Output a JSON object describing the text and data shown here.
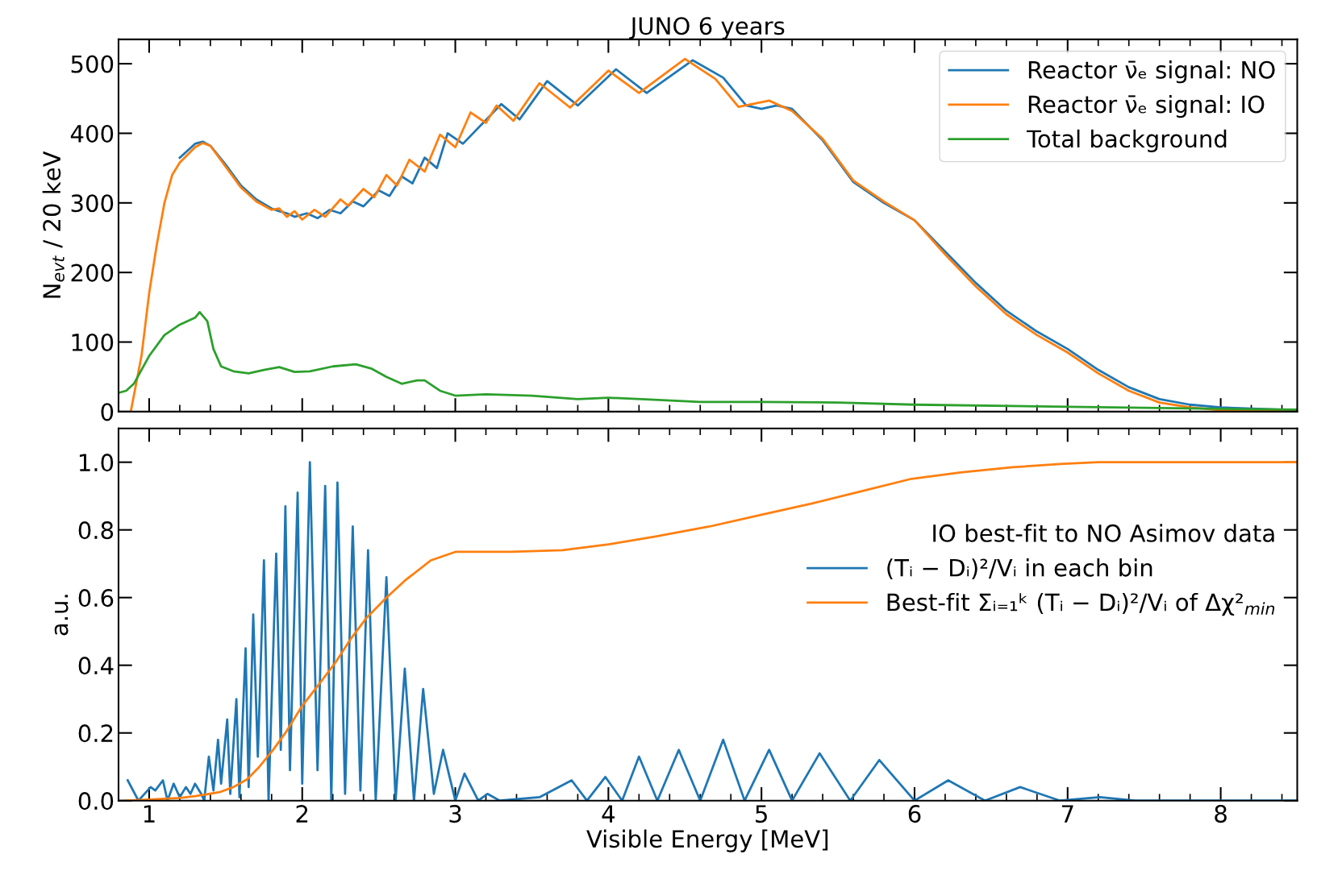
{
  "chart_data": [
    {
      "type": "line",
      "title": "JUNO 6 years",
      "ylabel": "N$_{evt}$ / 20 keV",
      "xlim": [
        0.8,
        8.5
      ],
      "xticks": [
        1,
        2,
        3,
        4,
        5,
        6,
        7,
        8,
        {
          "value": 1.2,
          "label": null
        },
        {
          "value": 1.4,
          "label": null
        },
        {
          "value": 1.6,
          "label": null
        },
        {
          "value": 1.8,
          "label": null
        },
        {
          "value": 2.2,
          "label": null
        },
        {
          "value": 2.4,
          "label": null
        },
        {
          "value": 2.6,
          "label": null
        },
        {
          "value": 2.8,
          "label": null
        },
        {
          "value": 3.2,
          "label": null
        },
        {
          "value": 3.4,
          "label": null
        },
        {
          "value": 3.6,
          "label": null
        },
        {
          "value": 3.8,
          "label": null
        },
        {
          "value": 4.2,
          "label": null
        },
        {
          "value": 4.4,
          "label": null
        },
        {
          "value": 4.6,
          "label": null
        },
        {
          "value": 4.8,
          "label": null
        },
        {
          "value": 5.2,
          "label": null
        },
        {
          "value": 5.4,
          "label": null
        },
        {
          "value": 5.6,
          "label": null
        },
        {
          "value": 5.8,
          "label": null
        },
        {
          "value": 6.2,
          "label": null
        },
        {
          "value": 6.4,
          "label": null
        },
        {
          "value": 6.6,
          "label": null
        },
        {
          "value": 6.8,
          "label": null
        },
        {
          "value": 7.2,
          "label": null
        },
        {
          "value": 7.4,
          "label": null
        },
        {
          "value": 7.6,
          "label": null
        },
        {
          "value": 7.8,
          "label": null
        },
        {
          "value": 8.2,
          "label": null
        },
        {
          "value": 8.4,
          "label": null
        }
      ],
      "ylim": [
        0,
        535
      ],
      "yticks": [
        0,
        100,
        200,
        300,
        400,
        500
      ],
      "tick_labels": "y",
      "legend": "top right",
      "grid": false,
      "series": [
        {
          "name": "Reactor ν̄ₑ signal: NO",
          "color": "#1f77b4",
          "x": [
            1.2,
            1.3,
            1.35,
            1.4,
            1.5,
            1.6,
            1.7,
            1.8,
            1.85,
            1.9,
            1.95,
            2.03,
            2.1,
            2.18,
            2.25,
            2.33,
            2.4,
            2.5,
            2.57,
            2.65,
            2.72,
            2.8,
            2.88,
            2.95,
            3.05,
            3.3,
            3.42,
            3.6,
            3.8,
            4.05,
            4.25,
            4.55,
            4.75,
            4.9,
            5.0,
            5.1,
            5.2,
            5.4,
            5.6,
            5.8,
            6.0,
            6.2,
            6.4,
            6.6,
            6.8,
            7.0,
            7.2,
            7.4,
            7.6,
            7.8,
            8.0,
            8.5
          ],
          "values": [
            365,
            385,
            388,
            382,
            355,
            325,
            305,
            292,
            288,
            285,
            280,
            285,
            278,
            290,
            285,
            302,
            295,
            318,
            310,
            338,
            328,
            365,
            350,
            400,
            385,
            442,
            420,
            475,
            440,
            492,
            458,
            505,
            480,
            440,
            435,
            440,
            435,
            390,
            330,
            300,
            275,
            230,
            185,
            145,
            115,
            90,
            60,
            35,
            18,
            10,
            6,
            2
          ]
        },
        {
          "name": "Reactor ν̄ₑ signal: IO",
          "color": "#ff7f0e",
          "x": [
            0.88,
            0.95,
            1.0,
            1.05,
            1.1,
            1.15,
            1.2,
            1.3,
            1.35,
            1.4,
            1.5,
            1.6,
            1.7,
            1.8,
            1.85,
            1.9,
            1.95,
            2.0,
            2.08,
            2.15,
            2.25,
            2.3,
            2.4,
            2.47,
            2.55,
            2.62,
            2.7,
            2.8,
            2.9,
            3.0,
            3.1,
            3.2,
            3.27,
            3.38,
            3.55,
            3.75,
            4.0,
            4.2,
            4.5,
            4.7,
            4.85,
            5.05,
            5.2,
            5.4,
            5.6,
            5.8,
            6.0,
            6.2,
            6.4,
            6.6,
            6.8,
            7.0,
            7.2,
            7.4,
            7.6,
            7.8,
            8.0,
            8.5
          ],
          "values": [
            0,
            80,
            170,
            240,
            300,
            340,
            358,
            380,
            386,
            382,
            352,
            322,
            302,
            290,
            292,
            280,
            288,
            276,
            290,
            280,
            305,
            296,
            320,
            308,
            340,
            325,
            362,
            345,
            398,
            380,
            430,
            415,
            440,
            418,
            472,
            437,
            490,
            458,
            507,
            478,
            438,
            447,
            432,
            392,
            332,
            302,
            275,
            226,
            180,
            140,
            110,
            85,
            55,
            30,
            13,
            6,
            2,
            0
          ]
        },
        {
          "name": "Total background",
          "color": "#2ca02c",
          "x": [
            0.8,
            0.85,
            0.9,
            1.0,
            1.1,
            1.2,
            1.3,
            1.33,
            1.38,
            1.42,
            1.47,
            1.55,
            1.65,
            1.75,
            1.85,
            1.95,
            2.05,
            2.2,
            2.35,
            2.45,
            2.55,
            2.65,
            2.75,
            2.8,
            2.9,
            3.0,
            3.2,
            3.5,
            3.8,
            4.0,
            4.3,
            4.6,
            5.0,
            5.5,
            6.0,
            7.0,
            8.0,
            8.5
          ],
          "values": [
            27,
            30,
            40,
            80,
            110,
            125,
            135,
            143,
            130,
            90,
            65,
            58,
            55,
            60,
            64,
            57,
            58,
            65,
            68,
            62,
            50,
            40,
            45,
            45,
            30,
            23,
            25,
            23,
            18,
            20,
            17,
            14,
            14,
            13,
            10,
            7,
            4,
            3
          ]
        }
      ]
    },
    {
      "type": "line",
      "xlabel": "Visible Energy [MeV]",
      "ylabel": "a.u.",
      "xlim": [
        0.8,
        8.5
      ],
      "xticks": [
        1,
        2,
        3,
        4,
        5,
        6,
        7,
        8,
        {
          "value": 1.2,
          "label": null
        },
        {
          "value": 1.4,
          "label": null
        },
        {
          "value": 1.6,
          "label": null
        },
        {
          "value": 1.8,
          "label": null
        },
        {
          "value": 2.2,
          "label": null
        },
        {
          "value": 2.4,
          "label": null
        },
        {
          "value": 2.6,
          "label": null
        },
        {
          "value": 2.8,
          "label": null
        },
        {
          "value": 3.2,
          "label": null
        },
        {
          "value": 3.4,
          "label": null
        },
        {
          "value": 3.6,
          "label": null
        },
        {
          "value": 3.8,
          "label": null
        },
        {
          "value": 4.2,
          "label": null
        },
        {
          "value": 4.4,
          "label": null
        },
        {
          "value": 4.6,
          "label": null
        },
        {
          "value": 4.8,
          "label": null
        },
        {
          "value": 5.2,
          "label": null
        },
        {
          "value": 5.4,
          "label": null
        },
        {
          "value": 5.6,
          "label": null
        },
        {
          "value": 5.8,
          "label": null
        },
        {
          "value": 6.2,
          "label": null
        },
        {
          "value": 6.4,
          "label": null
        },
        {
          "value": 6.6,
          "label": null
        },
        {
          "value": 6.8,
          "label": null
        },
        {
          "value": 7.2,
          "label": null
        },
        {
          "value": 7.4,
          "label": null
        },
        {
          "value": 7.6,
          "label": null
        },
        {
          "value": 7.8,
          "label": null
        },
        {
          "value": 8.2,
          "label": null
        },
        {
          "value": 8.4,
          "label": null
        }
      ],
      "ylim": [
        0,
        1.1
      ],
      "yticks": [
        {
          "value": 0,
          "label": "0.0"
        },
        {
          "value": 0.2,
          "label": "0.2"
        },
        {
          "value": 0.4,
          "label": "0.4"
        },
        {
          "value": 0.6,
          "label": "0.6"
        },
        {
          "value": 0.8,
          "label": "0.8"
        },
        {
          "value": 1.0,
          "label": "1.0"
        }
      ],
      "legend": "right",
      "legend_title": "IO best-fit to NO Asimov data",
      "grid": false,
      "series": [
        {
          "name": "(Tᵢ − Dᵢ)²/Vᵢ in each bin",
          "color": "#1f77b4",
          "x": [
            0.86,
            0.93,
            1.01,
            1.04,
            1.09,
            1.12,
            1.16,
            1.2,
            1.24,
            1.27,
            1.3,
            1.34,
            1.36,
            1.39,
            1.42,
            1.45,
            1.47,
            1.51,
            1.53,
            1.57,
            1.59,
            1.63,
            1.65,
            1.68,
            1.71,
            1.75,
            1.78,
            1.83,
            1.86,
            1.89,
            1.92,
            1.97,
            2.0,
            2.05,
            2.1,
            2.15,
            2.19,
            2.23,
            2.28,
            2.33,
            2.38,
            2.43,
            2.48,
            2.55,
            2.61,
            2.67,
            2.73,
            2.79,
            2.86,
            2.92,
            3.0,
            3.06,
            3.15,
            3.21,
            3.29,
            3.55,
            3.76,
            3.86,
            3.98,
            4.09,
            4.2,
            4.32,
            4.46,
            4.6,
            4.75,
            4.89,
            5.05,
            5.2,
            5.38,
            5.58,
            5.77,
            6.0,
            6.22,
            6.46,
            6.69,
            6.95,
            7.21,
            7.44,
            8.5
          ],
          "values": [
            0.06,
            0.0,
            0.04,
            0.03,
            0.06,
            0.0,
            0.05,
            0.01,
            0.04,
            0.02,
            0.05,
            0.02,
            0.0,
            0.13,
            0.03,
            0.18,
            0.05,
            0.24,
            0.02,
            0.3,
            0.01,
            0.45,
            0.04,
            0.55,
            0.13,
            0.71,
            0.0,
            0.73,
            0.15,
            0.87,
            0.09,
            0.91,
            0.05,
            1.0,
            0.09,
            0.93,
            0.0,
            0.94,
            0.02,
            0.81,
            0.03,
            0.74,
            0.0,
            0.66,
            0.0,
            0.39,
            0.0,
            0.33,
            0.02,
            0.15,
            0.0,
            0.08,
            0.0,
            0.02,
            0.0,
            0.01,
            0.06,
            0.0,
            0.07,
            0.0,
            0.13,
            0.0,
            0.15,
            0.0,
            0.18,
            0.0,
            0.15,
            0.0,
            0.14,
            0.0,
            0.12,
            0.0,
            0.06,
            0.0,
            0.04,
            0.0,
            0.01,
            0.0,
            0.0
          ]
        },
        {
          "name": "Best-fit Σᵢ₌₁ᵏ (Tᵢ − Dᵢ)²/Vᵢ of Δχ²$_{min}$",
          "color": "#ff7f0e",
          "x": [
            0.85,
            1.0,
            1.2,
            1.3,
            1.46,
            1.55,
            1.64,
            1.72,
            1.81,
            1.89,
            2.0,
            2.12,
            2.22,
            2.32,
            2.42,
            2.55,
            2.67,
            2.84,
            3.0,
            3.36,
            3.7,
            4.0,
            4.3,
            4.66,
            5.0,
            5.33,
            5.66,
            5.98,
            6.3,
            6.64,
            6.95,
            7.2,
            8.5
          ],
          "values": [
            0.0,
            0.003,
            0.008,
            0.013,
            0.025,
            0.04,
            0.063,
            0.1,
            0.15,
            0.2,
            0.28,
            0.35,
            0.41,
            0.48,
            0.54,
            0.6,
            0.65,
            0.71,
            0.735,
            0.735,
            0.74,
            0.757,
            0.78,
            0.81,
            0.845,
            0.878,
            0.915,
            0.951,
            0.97,
            0.985,
            0.995,
            1.0,
            1.0
          ]
        }
      ]
    }
  ]
}
